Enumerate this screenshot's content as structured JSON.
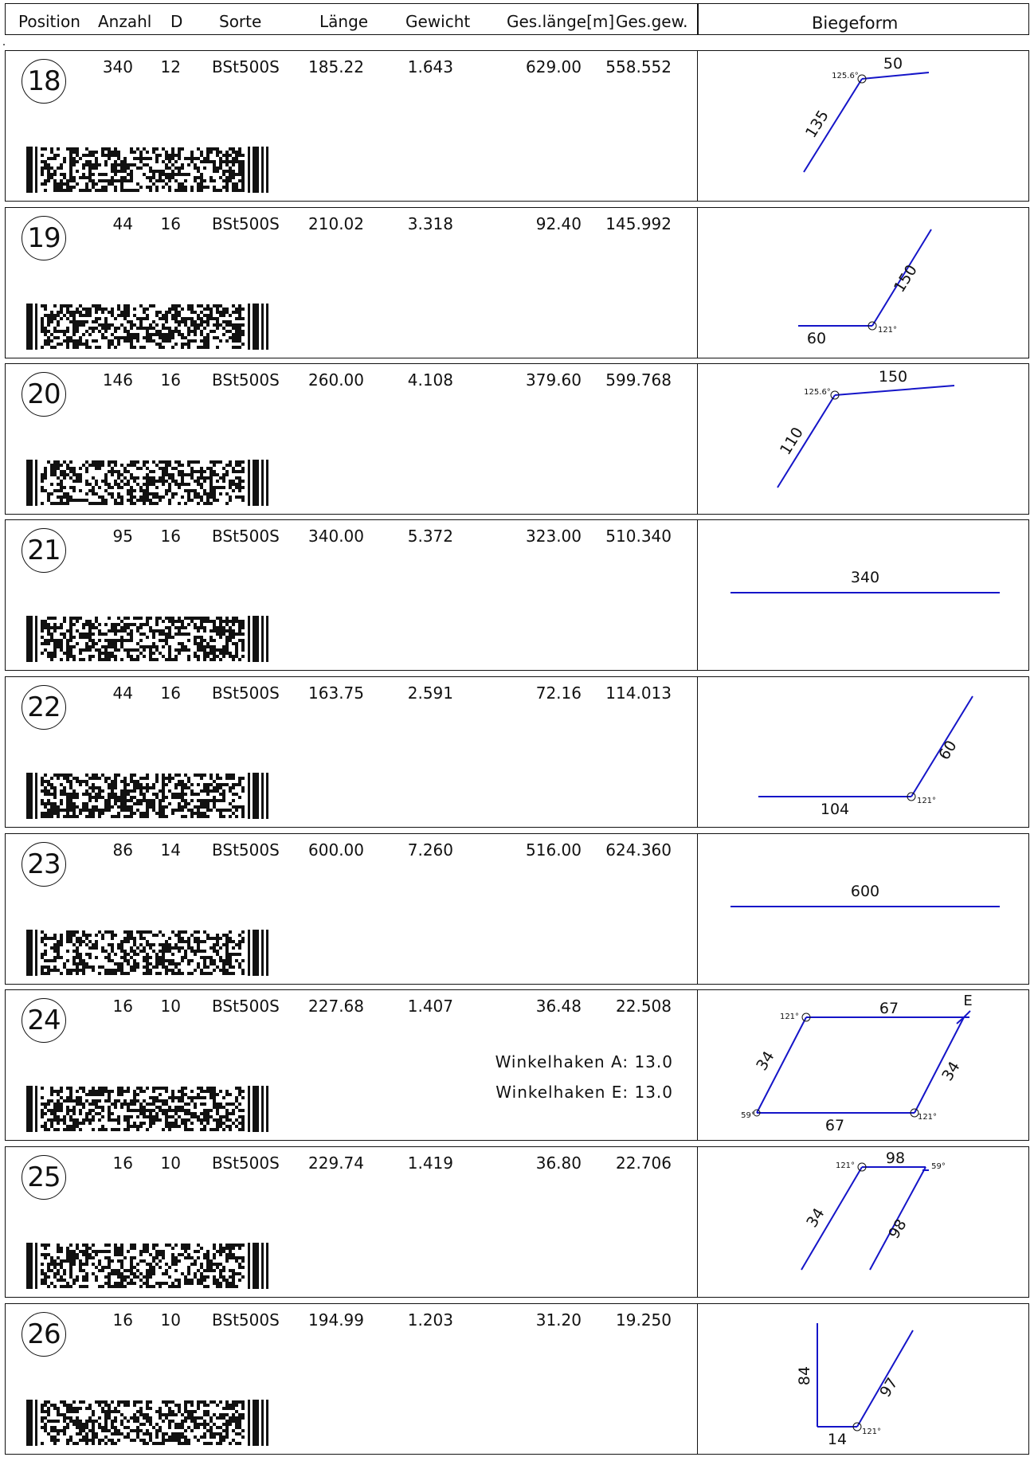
{
  "header": {
    "position": "Position",
    "anzahl": "Anzahl",
    "d": "D",
    "sorte": "Sorte",
    "laenge": "Länge",
    "gewicht": "Gewicht",
    "geslaenge": "Ges.länge[m]",
    "gesgew": "Ges.gew.",
    "biegeform": "Biegeform"
  },
  "rows": [
    {
      "pos": "18",
      "anzahl": "340",
      "d": "12",
      "sorte": "BSt500S",
      "laenge": "185.22",
      "gewicht": "1.643",
      "geslaenge": "629.00",
      "gesgew": "558.552",
      "shape": {
        "labels": [
          "135",
          "50"
        ],
        "angles": [
          "125.6°"
        ]
      }
    },
    {
      "pos": "19",
      "anzahl": "44",
      "d": "16",
      "sorte": "BSt500S",
      "laenge": "210.02",
      "gewicht": "3.318",
      "geslaenge": "92.40",
      "gesgew": "145.992",
      "shape": {
        "labels": [
          "60",
          "150"
        ],
        "angles": [
          "121°"
        ]
      }
    },
    {
      "pos": "20",
      "anzahl": "146",
      "d": "16",
      "sorte": "BSt500S",
      "laenge": "260.00",
      "gewicht": "4.108",
      "geslaenge": "379.60",
      "gesgew": "599.768",
      "shape": {
        "labels": [
          "110",
          "150"
        ],
        "angles": [
          "125.6°"
        ]
      }
    },
    {
      "pos": "21",
      "anzahl": "95",
      "d": "16",
      "sorte": "BSt500S",
      "laenge": "340.00",
      "gewicht": "5.372",
      "geslaenge": "323.00",
      "gesgew": "510.340",
      "shape": {
        "labels": [
          "340"
        ],
        "angles": []
      }
    },
    {
      "pos": "22",
      "anzahl": "44",
      "d": "16",
      "sorte": "BSt500S",
      "laenge": "163.75",
      "gewicht": "2.591",
      "geslaenge": "72.16",
      "gesgew": "114.013",
      "shape": {
        "labels": [
          "104",
          "60"
        ],
        "angles": [
          "121°"
        ]
      }
    },
    {
      "pos": "23",
      "anzahl": "86",
      "d": "14",
      "sorte": "BSt500S",
      "laenge": "600.00",
      "gewicht": "7.260",
      "geslaenge": "516.00",
      "gesgew": "624.360",
      "shape": {
        "labels": [
          "600"
        ],
        "angles": []
      }
    },
    {
      "pos": "24",
      "anzahl": "16",
      "d": "10",
      "sorte": "BSt500S",
      "laenge": "227.68",
      "gewicht": "1.407",
      "geslaenge": "36.48",
      "gesgew": "22.508",
      "notes": [
        "Winkelhaken A: 13.0",
        "Winkelhaken E: 13.0"
      ],
      "shape": {
        "labels": [
          "67",
          "34",
          "34",
          "67",
          "E"
        ],
        "angles": [
          "121°",
          "59°",
          "121°"
        ]
      }
    },
    {
      "pos": "25",
      "anzahl": "16",
      "d": "10",
      "sorte": "BSt500S",
      "laenge": "229.74",
      "gewicht": "1.419",
      "geslaenge": "36.80",
      "gesgew": "22.706",
      "shape": {
        "labels": [
          "34",
          "98",
          "98"
        ],
        "angles": [
          "121°",
          "59°"
        ]
      }
    },
    {
      "pos": "26",
      "anzahl": "16",
      "d": "10",
      "sorte": "BSt500S",
      "laenge": "194.99",
      "gewicht": "1.203",
      "geslaenge": "31.20",
      "gesgew": "19.250",
      "shape": {
        "labels": [
          "84",
          "14",
          "97"
        ],
        "angles": [
          "121°"
        ]
      }
    }
  ]
}
